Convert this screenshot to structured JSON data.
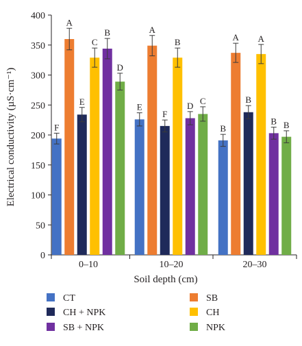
{
  "chart_data": {
    "type": "bar",
    "xlabel": "Soil depth (cm)",
    "ylabel": "Electrical conductivity (µS·cm⁻¹)",
    "ylim": [
      0,
      400
    ],
    "yticks": [
      0,
      50,
      100,
      150,
      200,
      250,
      300,
      350,
      400
    ],
    "categories": [
      "0–10",
      "10–20",
      "20–30"
    ],
    "grid": false,
    "legend_position": "bottom",
    "series": [
      {
        "name": "CT",
        "color": "#4472c4",
        "values": [
          194,
          226,
          191
        ],
        "errors": [
          9,
          11,
          10
        ],
        "letters": [
          "F",
          "E",
          "B"
        ]
      },
      {
        "name": "SB",
        "color": "#ed7d31",
        "values": [
          360,
          349,
          337
        ],
        "errors": [
          18,
          17,
          16
        ],
        "letters": [
          "A",
          "A",
          "A"
        ]
      },
      {
        "name": "CH + NPK",
        "color": "#1f2a5a",
        "values": [
          234,
          215,
          238
        ],
        "errors": [
          12,
          10,
          11
        ],
        "letters": [
          "E",
          "F",
          "B"
        ]
      },
      {
        "name": "CH",
        "color": "#ffc000",
        "values": [
          329,
          329,
          335
        ],
        "errors": [
          16,
          16,
          16
        ],
        "letters": [
          "C",
          "B",
          "A"
        ]
      },
      {
        "name": "SB + NPK",
        "color": "#7030a0",
        "values": [
          344,
          228,
          203
        ],
        "errors": [
          17,
          11,
          10
        ],
        "letters": [
          "B",
          "D",
          "B"
        ]
      },
      {
        "name": "NPK",
        "color": "#70ad47",
        "values": [
          289,
          235,
          197
        ],
        "errors": [
          14,
          12,
          10
        ],
        "letters": [
          "D",
          "C",
          "B"
        ]
      }
    ]
  }
}
